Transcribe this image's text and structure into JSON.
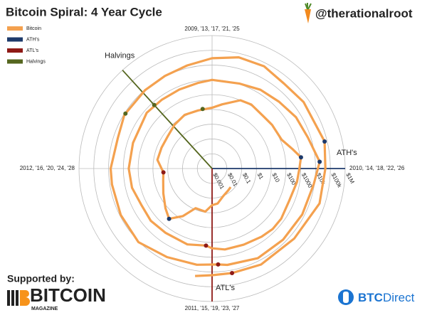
{
  "chart_data": {
    "type": "polar",
    "title": "Bitcoin Spiral: 4 Year Cycle",
    "rlim": [
      0.001,
      1000000
    ],
    "rlog": true,
    "rticks": [
      {
        "value": 0.001,
        "label": "$0.001"
      },
      {
        "value": 0.01,
        "label": "$0.01"
      },
      {
        "value": 0.1,
        "label": "$0.1"
      },
      {
        "value": 1,
        "label": "$1"
      },
      {
        "value": 10,
        "label": "$10"
      },
      {
        "value": 100,
        "label": "$100"
      },
      {
        "value": 1000,
        "label": "$1000"
      },
      {
        "value": 10000,
        "label": "$10k"
      },
      {
        "value": 100000,
        "label": "$100k"
      },
      {
        "value": 1000000,
        "label": "$1M"
      }
    ],
    "angle_ticks": [
      {
        "value": 2009,
        "label": "2009, '13, '17, '21, '25"
      },
      {
        "value": 2010,
        "label": "2010, '14, '18, '22, '26"
      },
      {
        "value": 2011,
        "label": "2011, '15, '19, '23, '27"
      },
      {
        "value": 2012,
        "label": "2012, '16, '20, '24, '28"
      }
    ],
    "grid": true,
    "legend": "top-left",
    "series": [
      {
        "name": "Bitcoin",
        "color": "#f4a14f",
        "mode": "line",
        "x": [
          2010.5,
          2010.6,
          2010.75,
          2010.9,
          2011.0,
          2011.1,
          2011.25,
          2011.35,
          2011.45,
          2011.55,
          2011.7,
          2011.85,
          2011.95,
          2012.1,
          2012.25,
          2012.4,
          2012.55,
          2012.7,
          2012.85,
          2013.0,
          2013.1,
          2013.25,
          2013.35,
          2013.5,
          2013.6,
          2013.75,
          2013.85,
          2013.92,
          2014.0,
          2014.1,
          2014.25,
          2014.4,
          2014.5,
          2014.6,
          2014.75,
          2014.9,
          2015.0,
          2015.05,
          2015.2,
          2015.4,
          2015.55,
          2015.7,
          2015.85,
          2016.0,
          2016.2,
          2016.45,
          2016.6,
          2016.75,
          2016.9,
          2017.0,
          2017.2,
          2017.35,
          2017.5,
          2017.65,
          2017.8,
          2017.96,
          2018.1,
          2018.3,
          2018.5,
          2018.7,
          2018.9,
          2018.96,
          2019.1,
          2019.3,
          2019.5,
          2019.7,
          2019.9,
          2020.0,
          2020.2,
          2020.35,
          2020.55,
          2020.7,
          2020.85,
          2021.0,
          2021.15,
          2021.3,
          2021.45,
          2021.6,
          2021.85,
          2022.0,
          2022.2,
          2022.45,
          2022.7,
          2022.88,
          2023.0,
          2023.1
        ],
        "values": [
          0.06,
          0.07,
          0.1,
          0.25,
          0.3,
          0.9,
          0.8,
          6,
          30,
          14,
          5,
          2.5,
          2,
          5.5,
          5,
          5.1,
          8,
          12,
          11,
          13,
          25,
          100,
          120,
          90,
          105,
          125,
          400,
          1150,
          800,
          650,
          450,
          600,
          620,
          500,
          380,
          350,
          250,
          170,
          250,
          235,
          280,
          240,
          370,
          430,
          420,
          650,
          580,
          610,
          750,
          1000,
          1100,
          1800,
          2500,
          4500,
          6500,
          19500,
          9000,
          7000,
          6300,
          6500,
          4000,
          3200,
          3900,
          5300,
          11000,
          8500,
          7200,
          7200,
          5000,
          9000,
          9500,
          10800,
          15000,
          29000,
          55000,
          58000,
          34000,
          45000,
          67000,
          46000,
          44000,
          20000,
          19500,
          16000,
          16500,
          23000
        ]
      },
      {
        "name": "ATH's",
        "color": "#1d3a6b",
        "mode": "points",
        "line_x": 2018,
        "label": "ATH's",
        "x": [
          2011.45,
          2013.92,
          2017.96,
          2021.85
        ],
        "values": [
          30,
          1150,
          19500,
          67000
        ]
      },
      {
        "name": "ATL's",
        "color": "#8e1a16",
        "mode": "points",
        "line_x": 2019,
        "label": "ATL's",
        "x": [
          2011.95,
          2015.05,
          2018.96,
          2022.88
        ],
        "values": [
          2,
          170,
          3200,
          16000
        ]
      },
      {
        "name": "Halvings",
        "color": "#55661f",
        "mode": "points",
        "line_x": 2016.53,
        "label": "Halvings",
        "x": [
          2012.9,
          2016.53,
          2020.36
        ],
        "values": [
          12,
          650,
          8700
        ]
      }
    ]
  },
  "page": {
    "handle": "@therationalroot",
    "supported_by": "Supported by:",
    "sponsor1": {
      "name": "BITCOIN",
      "sub": "MAGAZINE"
    },
    "sponsor2": {
      "bold": "BTC",
      "rest": "Direct"
    }
  }
}
